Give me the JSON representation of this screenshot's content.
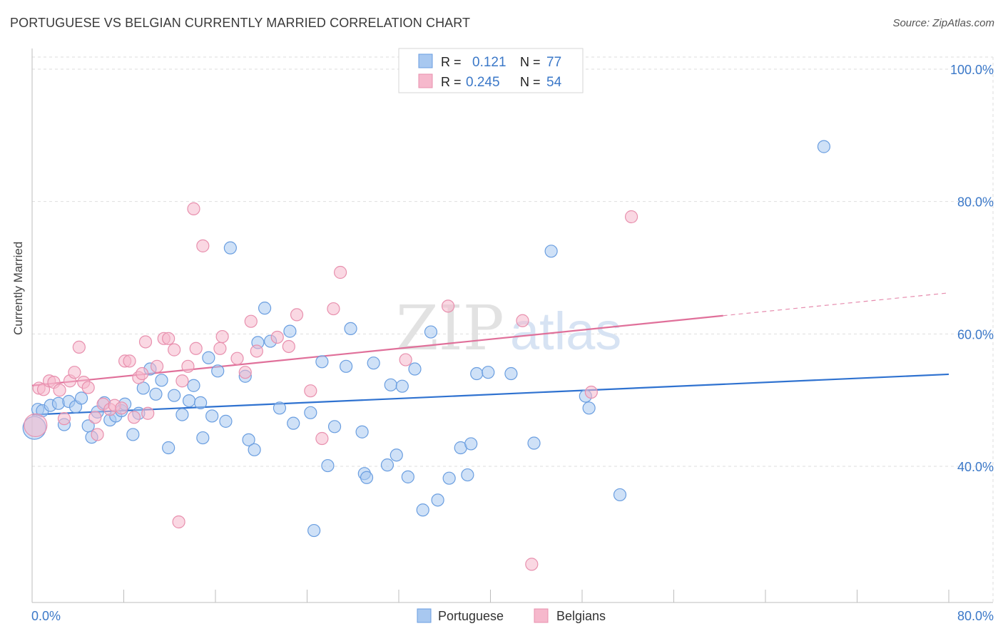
{
  "header": {
    "title": "PORTUGUESE VS BELGIAN CURRENTLY MARRIED CORRELATION CHART",
    "source": "Source: ZipAtlas.com"
  },
  "watermark": {
    "part1": "ZIP",
    "part2": "atlas"
  },
  "colors": {
    "blue_fill": "#a8c8f0",
    "blue_stroke": "#6a9ee0",
    "blue_line": "#2f72d0",
    "pink_fill": "#f6b8cc",
    "pink_stroke": "#e890ae",
    "pink_line": "#e0709a",
    "axis_text": "#3b78c8",
    "grid": "#dedede"
  },
  "chart_data": {
    "type": "scatter",
    "title": "PORTUGUESE VS BELGIAN CURRENTLY MARRIED CORRELATION CHART",
    "xlabel": "",
    "ylabel": "Currently Married",
    "xlim": [
      0,
      80
    ],
    "ylim": [
      22,
      102
    ],
    "x_tick_labels": [
      {
        "value": 0,
        "label": "0.0%"
      },
      {
        "value": 80,
        "label": "80.0%"
      }
    ],
    "y_tick_labels": [
      {
        "value": 40,
        "label": "40.0%"
      },
      {
        "value": 60,
        "label": "60.0%"
      },
      {
        "value": 80,
        "label": "80.0%"
      },
      {
        "value": 100,
        "label": "100.0%"
      }
    ],
    "grid": true,
    "legend": {
      "position": "top-center",
      "entries": [
        {
          "r_label": "R =",
          "r_value": "0.121",
          "n_label": "N =",
          "n_value": "77"
        },
        {
          "r_label": "R =",
          "r_value": "0.245",
          "n_label": "N =",
          "n_value": "54"
        }
      ]
    },
    "bottom_legend": [
      "Portuguese",
      "Belgians"
    ],
    "series": [
      {
        "name": "Portuguese",
        "trend": {
          "x0": 0,
          "y0": 47.8,
          "x1": 80,
          "y1": 53.9,
          "solid_until": 80
        },
        "points": [
          [
            0.2,
            45.8,
            1
          ],
          [
            0.5,
            48.6,
            0
          ],
          [
            0.9,
            48.4,
            0
          ],
          [
            1.6,
            49.2,
            0
          ],
          [
            2.3,
            49.5,
            0
          ],
          [
            2.8,
            46.3,
            0
          ],
          [
            3.2,
            49.8,
            0
          ],
          [
            3.8,
            49.0,
            0
          ],
          [
            4.3,
            50.3,
            0
          ],
          [
            4.9,
            46.1,
            0
          ],
          [
            5.2,
            44.4,
            0
          ],
          [
            5.7,
            48.2,
            0
          ],
          [
            6.3,
            49.6,
            0
          ],
          [
            6.8,
            47.0,
            0
          ],
          [
            7.3,
            47.6,
            0
          ],
          [
            7.8,
            48.4,
            0
          ],
          [
            8.1,
            49.4,
            0
          ],
          [
            8.8,
            44.8,
            0
          ],
          [
            9.3,
            48.0,
            0
          ],
          [
            9.7,
            51.8,
            0
          ],
          [
            10.3,
            54.7,
            0
          ],
          [
            10.8,
            50.9,
            0
          ],
          [
            11.3,
            53.0,
            0
          ],
          [
            11.9,
            42.8,
            0
          ],
          [
            12.4,
            50.7,
            0
          ],
          [
            13.1,
            47.8,
            0
          ],
          [
            13.7,
            49.9,
            0
          ],
          [
            14.1,
            52.2,
            0
          ],
          [
            14.7,
            49.6,
            0
          ],
          [
            14.9,
            44.3,
            0
          ],
          [
            15.4,
            56.4,
            0
          ],
          [
            15.7,
            47.6,
            0
          ],
          [
            16.2,
            54.4,
            0
          ],
          [
            16.9,
            46.8,
            0
          ],
          [
            17.3,
            73.0,
            0
          ],
          [
            18.6,
            53.6,
            0
          ],
          [
            18.9,
            44.0,
            0
          ],
          [
            19.4,
            42.5,
            0
          ],
          [
            19.7,
            58.7,
            0
          ],
          [
            20.3,
            63.9,
            0
          ],
          [
            20.8,
            58.9,
            0
          ],
          [
            21.6,
            48.8,
            0
          ],
          [
            22.5,
            60.4,
            0
          ],
          [
            22.8,
            46.5,
            0
          ],
          [
            24.3,
            48.1,
            0
          ],
          [
            24.6,
            30.3,
            0
          ],
          [
            25.3,
            55.8,
            0
          ],
          [
            25.8,
            40.1,
            0
          ],
          [
            26.4,
            46.0,
            0
          ],
          [
            27.4,
            55.1,
            0
          ],
          [
            27.8,
            60.8,
            0
          ],
          [
            28.8,
            45.2,
            0
          ],
          [
            29.0,
            38.9,
            0
          ],
          [
            29.2,
            38.3,
            0
          ],
          [
            29.8,
            55.6,
            0
          ],
          [
            31.0,
            40.2,
            0
          ],
          [
            31.3,
            52.3,
            0
          ],
          [
            31.8,
            41.7,
            0
          ],
          [
            32.3,
            52.1,
            0
          ],
          [
            32.8,
            38.4,
            0
          ],
          [
            33.4,
            54.7,
            0
          ],
          [
            34.1,
            33.4,
            0
          ],
          [
            34.8,
            60.3,
            0
          ],
          [
            35.4,
            34.9,
            0
          ],
          [
            36.4,
            38.2,
            0
          ],
          [
            37.4,
            42.8,
            0
          ],
          [
            38.0,
            38.7,
            0
          ],
          [
            38.3,
            43.4,
            0
          ],
          [
            38.8,
            54.0,
            0
          ],
          [
            39.8,
            54.2,
            0
          ],
          [
            41.8,
            54.0,
            0
          ],
          [
            43.8,
            43.5,
            0
          ],
          [
            45.3,
            72.5,
            0
          ],
          [
            48.3,
            50.6,
            0
          ],
          [
            48.6,
            48.8,
            0
          ],
          [
            51.3,
            35.7,
            0
          ],
          [
            69.1,
            88.3,
            0
          ]
        ]
      },
      {
        "name": "Belgians",
        "trend": {
          "x0": 0,
          "y0": 52.2,
          "x1": 80,
          "y1": 66.2,
          "solid_until": 60.3
        },
        "points": [
          [
            0.3,
            46.2,
            1
          ],
          [
            0.6,
            51.8,
            0
          ],
          [
            1.0,
            51.6,
            0
          ],
          [
            1.5,
            52.9,
            0
          ],
          [
            1.9,
            52.7,
            0
          ],
          [
            2.4,
            51.5,
            0
          ],
          [
            2.8,
            47.2,
            0
          ],
          [
            3.3,
            52.9,
            0
          ],
          [
            3.7,
            54.2,
            0
          ],
          [
            4.1,
            58.0,
            0
          ],
          [
            4.5,
            52.7,
            0
          ],
          [
            4.9,
            51.9,
            0
          ],
          [
            5.5,
            47.4,
            0
          ],
          [
            5.7,
            44.8,
            0
          ],
          [
            6.2,
            49.4,
            0
          ],
          [
            6.8,
            48.6,
            0
          ],
          [
            7.2,
            49.2,
            0
          ],
          [
            7.8,
            48.8,
            0
          ],
          [
            8.1,
            55.9,
            0
          ],
          [
            8.5,
            55.9,
            0
          ],
          [
            8.9,
            47.4,
            0
          ],
          [
            9.3,
            53.4,
            0
          ],
          [
            9.6,
            54.0,
            0
          ],
          [
            9.9,
            58.8,
            0
          ],
          [
            10.1,
            48.0,
            0
          ],
          [
            10.9,
            55.1,
            0
          ],
          [
            11.5,
            59.3,
            0
          ],
          [
            11.9,
            59.3,
            0
          ],
          [
            12.4,
            57.6,
            0
          ],
          [
            12.8,
            31.6,
            0
          ],
          [
            13.1,
            52.9,
            0
          ],
          [
            13.6,
            55.1,
            0
          ],
          [
            14.1,
            78.9,
            0
          ],
          [
            14.3,
            57.8,
            0
          ],
          [
            14.9,
            73.3,
            0
          ],
          [
            16.4,
            57.8,
            0
          ],
          [
            16.6,
            59.6,
            0
          ],
          [
            17.9,
            56.3,
            0
          ],
          [
            18.6,
            54.2,
            0
          ],
          [
            19.1,
            61.9,
            0
          ],
          [
            19.6,
            57.4,
            0
          ],
          [
            21.4,
            59.5,
            0
          ],
          [
            22.4,
            58.1,
            0
          ],
          [
            23.1,
            62.9,
            0
          ],
          [
            24.3,
            51.4,
            0
          ],
          [
            25.3,
            44.2,
            0
          ],
          [
            26.3,
            63.8,
            0
          ],
          [
            26.9,
            69.3,
            0
          ],
          [
            32.6,
            56.1,
            0
          ],
          [
            36.3,
            64.2,
            0
          ],
          [
            42.8,
            62.0,
            0
          ],
          [
            43.6,
            25.2,
            0
          ],
          [
            48.8,
            51.2,
            0
          ],
          [
            52.3,
            77.7,
            0
          ]
        ]
      }
    ]
  }
}
